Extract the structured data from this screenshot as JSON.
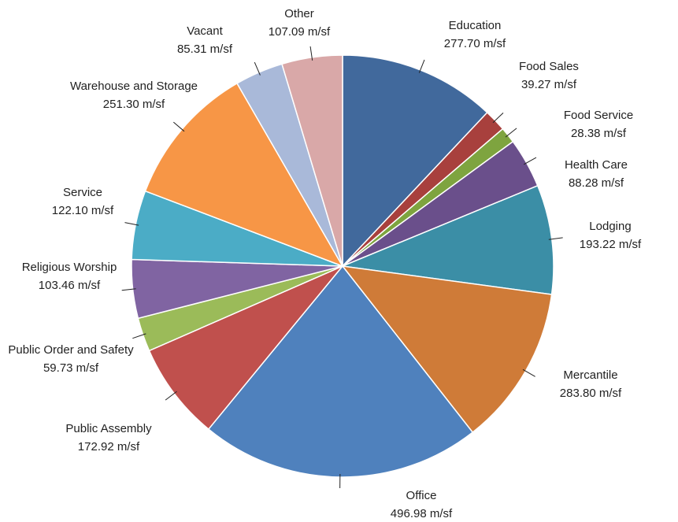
{
  "chart_data": {
    "type": "pie",
    "categories": [
      "Education",
      "Food Sales",
      "Food Service",
      "Health Care",
      "Lodging",
      "Mercantile",
      "Office",
      "Public Assembly",
      "Public Order and Safety",
      "Religious Worship",
      "Service",
      "Warehouse and Storage",
      "Vacant",
      "Other"
    ],
    "values": [
      277.7,
      39.27,
      28.38,
      88.28,
      193.22,
      283.8,
      496.98,
      172.92,
      59.73,
      103.46,
      122.1,
      251.3,
      85.31,
      107.09
    ],
    "value_labels": [
      "277.70 m/sf",
      "39.27 m/sf",
      "28.38 m/sf",
      "88.28 m/sf",
      "193.22 m/sf",
      "283.80 m/sf",
      "496.98 m/sf",
      "172.92 m/sf",
      "59.73 m/sf",
      "103.46 m/sf",
      "122.10 m/sf",
      "251.30 m/sf",
      "85.31 m/sf",
      "107.09 m/sf"
    ],
    "colors": [
      "#41699c",
      "#a8403d",
      "#7ea43f",
      "#6a4f8b",
      "#3b8ea6",
      "#cf7b38",
      "#4f81bd",
      "#c0504d",
      "#9bbb59",
      "#8064a2",
      "#4bacc6",
      "#f79646",
      "#a9b9d9",
      "#d9a8a8"
    ]
  }
}
